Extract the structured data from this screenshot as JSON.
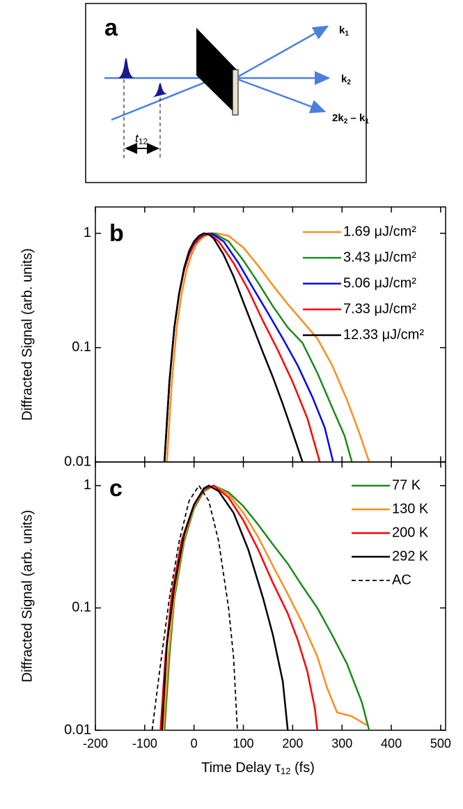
{
  "diagram": {
    "panel_label": "a",
    "labels": [
      [
        "k",
        "1"
      ],
      [
        "k",
        "2"
      ],
      [
        "2",
        "k",
        "2",
        " – ",
        "k",
        "1"
      ]
    ],
    "delay": [
      "t",
      "12"
    ]
  },
  "chart_data": [
    {
      "type": "line",
      "panel_label": "b",
      "ylabel": "Diffracted Signal (arb. units)",
      "log_y": true,
      "xlim": [
        -200,
        510
      ],
      "xticks": [
        -200,
        -100,
        0,
        100,
        200,
        300,
        400,
        500
      ],
      "xtick_labels": false,
      "ylim": [
        0.01,
        1.7
      ],
      "yticks": [
        0.01,
        0.1,
        1
      ],
      "legend": "top-right",
      "series": [
        {
          "name": "1.69 μJ/cm²",
          "color": "#ff8c1a",
          "dash": false,
          "x": [
            -55,
            -45,
            -35,
            -25,
            -15,
            -5,
            5,
            15,
            25,
            45,
            70,
            100,
            130,
            160,
            190,
            220,
            250,
            280,
            310,
            335,
            355
          ],
          "values": [
            0.01,
            0.05,
            0.15,
            0.3,
            0.48,
            0.65,
            0.8,
            0.9,
            0.96,
            1,
            0.95,
            0.75,
            0.52,
            0.35,
            0.24,
            0.17,
            0.12,
            0.07,
            0.035,
            0.018,
            0.01
          ]
        },
        {
          "name": "3.43 μJ/cm²",
          "color": "#1a8a1a",
          "dash": false,
          "x": [
            -60,
            -50,
            -40,
            -30,
            -20,
            -10,
            0,
            10,
            20,
            40,
            70,
            100,
            130,
            160,
            190,
            220,
            250,
            280,
            305,
            320
          ],
          "values": [
            0.01,
            0.05,
            0.15,
            0.3,
            0.48,
            0.65,
            0.8,
            0.9,
            0.97,
            1,
            0.85,
            0.58,
            0.37,
            0.23,
            0.15,
            0.11,
            0.06,
            0.03,
            0.017,
            0.01
          ]
        },
        {
          "name": "5.06 μJ/cm²",
          "color": "#0000ff",
          "dash": false,
          "x": [
            -60,
            -50,
            -40,
            -30,
            -20,
            -10,
            0,
            10,
            20,
            35,
            60,
            90,
            120,
            150,
            180,
            210,
            240,
            265,
            282
          ],
          "values": [
            0.01,
            0.05,
            0.15,
            0.3,
            0.48,
            0.65,
            0.8,
            0.9,
            0.97,
            1,
            0.85,
            0.55,
            0.33,
            0.2,
            0.12,
            0.07,
            0.037,
            0.02,
            0.01
          ]
        },
        {
          "name": "7.33 μJ/cm²",
          "color": "#ff0000",
          "dash": false,
          "x": [
            -60,
            -50,
            -40,
            -30,
            -20,
            -10,
            0,
            10,
            20,
            30,
            50,
            80,
            110,
            140,
            170,
            200,
            230,
            255
          ],
          "values": [
            0.01,
            0.05,
            0.15,
            0.3,
            0.48,
            0.66,
            0.82,
            0.92,
            0.98,
            1,
            0.85,
            0.55,
            0.32,
            0.17,
            0.095,
            0.05,
            0.024,
            0.01
          ]
        },
        {
          "name": "12.33 μJ/cm²",
          "color": "#000000",
          "dash": false,
          "x": [
            -60,
            -50,
            -40,
            -30,
            -20,
            -10,
            0,
            10,
            20,
            30,
            40,
            60,
            80,
            100,
            120,
            140,
            160,
            180,
            200,
            220
          ],
          "values": [
            0.01,
            0.05,
            0.15,
            0.3,
            0.5,
            0.7,
            0.85,
            0.95,
            1,
            0.98,
            0.9,
            0.65,
            0.42,
            0.25,
            0.15,
            0.09,
            0.055,
            0.032,
            0.018,
            0.01
          ]
        }
      ]
    },
    {
      "type": "line",
      "panel_label": "c",
      "ylabel": "Diffracted Signal (arb. units)",
      "log_y": true,
      "xlabel": [
        "Time Delay τ",
        "12",
        " (fs)"
      ],
      "xlim": [
        -200,
        510
      ],
      "xticks": [
        -200,
        -100,
        0,
        100,
        200,
        300,
        400,
        500
      ],
      "xtick_labels": true,
      "ylim": [
        0.01,
        1.56
      ],
      "yticks": [
        0.01,
        0.1,
        1
      ],
      "legend": "top-right",
      "series": [
        {
          "name": "77 K",
          "color": "#1a8a1a",
          "dash": false,
          "x": [
            -60,
            -50,
            -40,
            -20,
            0,
            20,
            40,
            70,
            100,
            130,
            160,
            190,
            220,
            250,
            280,
            310,
            340,
            355
          ],
          "values": [
            0.01,
            0.04,
            0.12,
            0.35,
            0.65,
            0.9,
            1,
            0.88,
            0.68,
            0.48,
            0.33,
            0.23,
            0.15,
            0.1,
            0.06,
            0.035,
            0.017,
            0.01
          ]
        },
        {
          "name": "130 K",
          "color": "#ff8c1a",
          "dash": false,
          "x": [
            -62,
            -52,
            -40,
            -20,
            0,
            20,
            40,
            70,
            100,
            130,
            160,
            190,
            220,
            250,
            270,
            290,
            320,
            350
          ],
          "values": [
            0.01,
            0.04,
            0.13,
            0.37,
            0.67,
            0.92,
            1,
            0.85,
            0.6,
            0.38,
            0.22,
            0.13,
            0.075,
            0.04,
            0.022,
            0.014,
            0.013,
            0.011
          ]
        },
        {
          "name": "200 K",
          "color": "#ff0000",
          "dash": false,
          "x": [
            -68,
            -58,
            -45,
            -25,
            0,
            20,
            40,
            70,
            100,
            130,
            160,
            190,
            210,
            230,
            245,
            250
          ],
          "values": [
            0.01,
            0.04,
            0.13,
            0.36,
            0.7,
            0.93,
            1,
            0.8,
            0.52,
            0.3,
            0.16,
            0.09,
            0.055,
            0.03,
            0.015,
            0.01
          ]
        },
        {
          "name": "292 K",
          "color": "#000000",
          "dash": false,
          "x": [
            -65,
            -55,
            -40,
            -20,
            0,
            20,
            30,
            50,
            80,
            110,
            140,
            160,
            180,
            190
          ],
          "values": [
            0.01,
            0.05,
            0.15,
            0.4,
            0.7,
            0.95,
            1,
            0.9,
            0.6,
            0.3,
            0.12,
            0.06,
            0.025,
            0.01
          ]
        },
        {
          "name": "AC",
          "color": "#000000",
          "dash": true,
          "x": [
            -85,
            -70,
            -50,
            -30,
            -10,
            10,
            30,
            50,
            70,
            80,
            88
          ],
          "values": [
            0.01,
            0.03,
            0.12,
            0.35,
            0.75,
            1,
            0.75,
            0.35,
            0.1,
            0.04,
            0.01
          ]
        }
      ]
    }
  ]
}
